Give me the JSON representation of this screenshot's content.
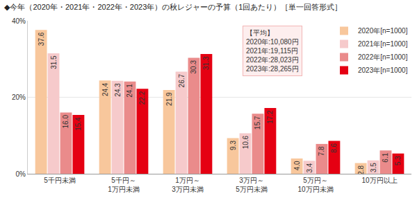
{
  "chart_data": {
    "type": "bar",
    "title": "◆今年（2020年・2021年・2022年・2023年）の秋レジャーの予算（1回あたり）［単一回答形式］",
    "categories": [
      "5千円未満",
      "5千円～\n1万円未満",
      "1万円～\n3万円未満",
      "3万円～\n5万円未満",
      "5万円～\n10万円未満",
      "10万円以上"
    ],
    "series": [
      {
        "name": "2020年[n=1000]",
        "color": "#f8c79c",
        "values": [
          37.6,
          24.4,
          21.9,
          9.3,
          4.0,
          2.8
        ],
        "value_labels": [
          "37.6",
          "24.4",
          "21.9",
          "9.3",
          "4.0",
          "2.8"
        ]
      },
      {
        "name": "2021年[n=1000]",
        "color": "#f6cacb",
        "values": [
          31.5,
          24.3,
          26.7,
          10.6,
          3.4,
          3.5
        ],
        "value_labels": [
          "31.5",
          "24.3",
          "26.7",
          "10.6",
          "3.4",
          "3.5"
        ]
      },
      {
        "name": "2022年[n=1000]",
        "color": "#ea8b8b",
        "values": [
          16.0,
          24.1,
          30.3,
          15.7,
          7.8,
          6.1
        ],
        "value_labels": [
          "16.0",
          "24.1",
          "30.3",
          "15.7",
          "7.8",
          "6.1"
        ]
      },
      {
        "name": "2023年[n=1000]",
        "color": "#e50012",
        "values": [
          15.4,
          22.2,
          31.3,
          17.2,
          8.6,
          5.3
        ],
        "value_labels": [
          "15.4",
          "22.2",
          "31.3",
          "17.2",
          "8.6",
          "5.3"
        ]
      }
    ],
    "ylim": [
      0,
      40
    ],
    "yticks": [
      {
        "value": 0,
        "label": "0%"
      },
      {
        "value": 20,
        "label": "20%"
      },
      {
        "value": 40,
        "label": "40%"
      }
    ],
    "grid": true,
    "legend": "top right",
    "data_labels": true,
    "annotations": [
      "【平均】",
      "2020年:10,080円",
      "2021年:19,115円",
      "2022年:28,023円",
      "2023年:28,265円"
    ]
  }
}
